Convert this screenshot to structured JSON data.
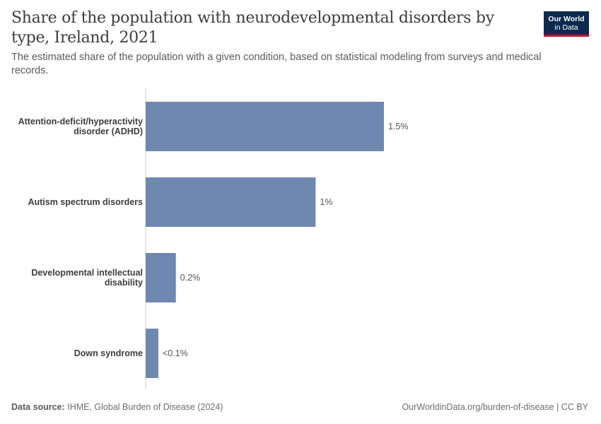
{
  "header": {
    "title": "Share of the population with neurodevelopmental disorders by type, Ireland, 2021",
    "subtitle": "The estimated share of the population with a given condition, based on statistical modeling from surveys and medical records."
  },
  "logo": {
    "line1": "Our World",
    "line2": "in Data"
  },
  "footer": {
    "source_label": "Data source:",
    "source_text": "IHME, Global Burden of Disease (2024)",
    "url_text": "OurWorldinData.org/burden-of-disease | CC BY"
  },
  "colors": {
    "bar": "#6f88b0",
    "axis": "#cccccc",
    "logo_bg": "#0d2a4e",
    "logo_accent": "#c8102e"
  },
  "chart_data": {
    "type": "bar",
    "orientation": "horizontal",
    "title": "Share of the population with neurodevelopmental disorders by type, Ireland, 2021",
    "subtitle": "The estimated share of the population with a given condition, based on statistical modeling from surveys and medical records.",
    "categories": [
      "Attention-deficit/hyperactivity disorder (ADHD)",
      "Autism spectrum disorders",
      "Developmental intellectual disability",
      "Down syndrome"
    ],
    "category_label_lines": [
      [
        "Attention-deficit/hyperactivity",
        "disorder (ADHD)"
      ],
      [
        "Autism spectrum disorders"
      ],
      [
        "Developmental intellectual",
        "disability"
      ],
      [
        "Down syndrome"
      ]
    ],
    "values": [
      1.5,
      1.07,
      0.19,
      0.08
    ],
    "value_labels": [
      "1.5%",
      "1%",
      "0.2%",
      "<0.1%"
    ],
    "unit": "%",
    "xlim": [
      0,
      1.5
    ],
    "grid": false,
    "legend": "none"
  }
}
